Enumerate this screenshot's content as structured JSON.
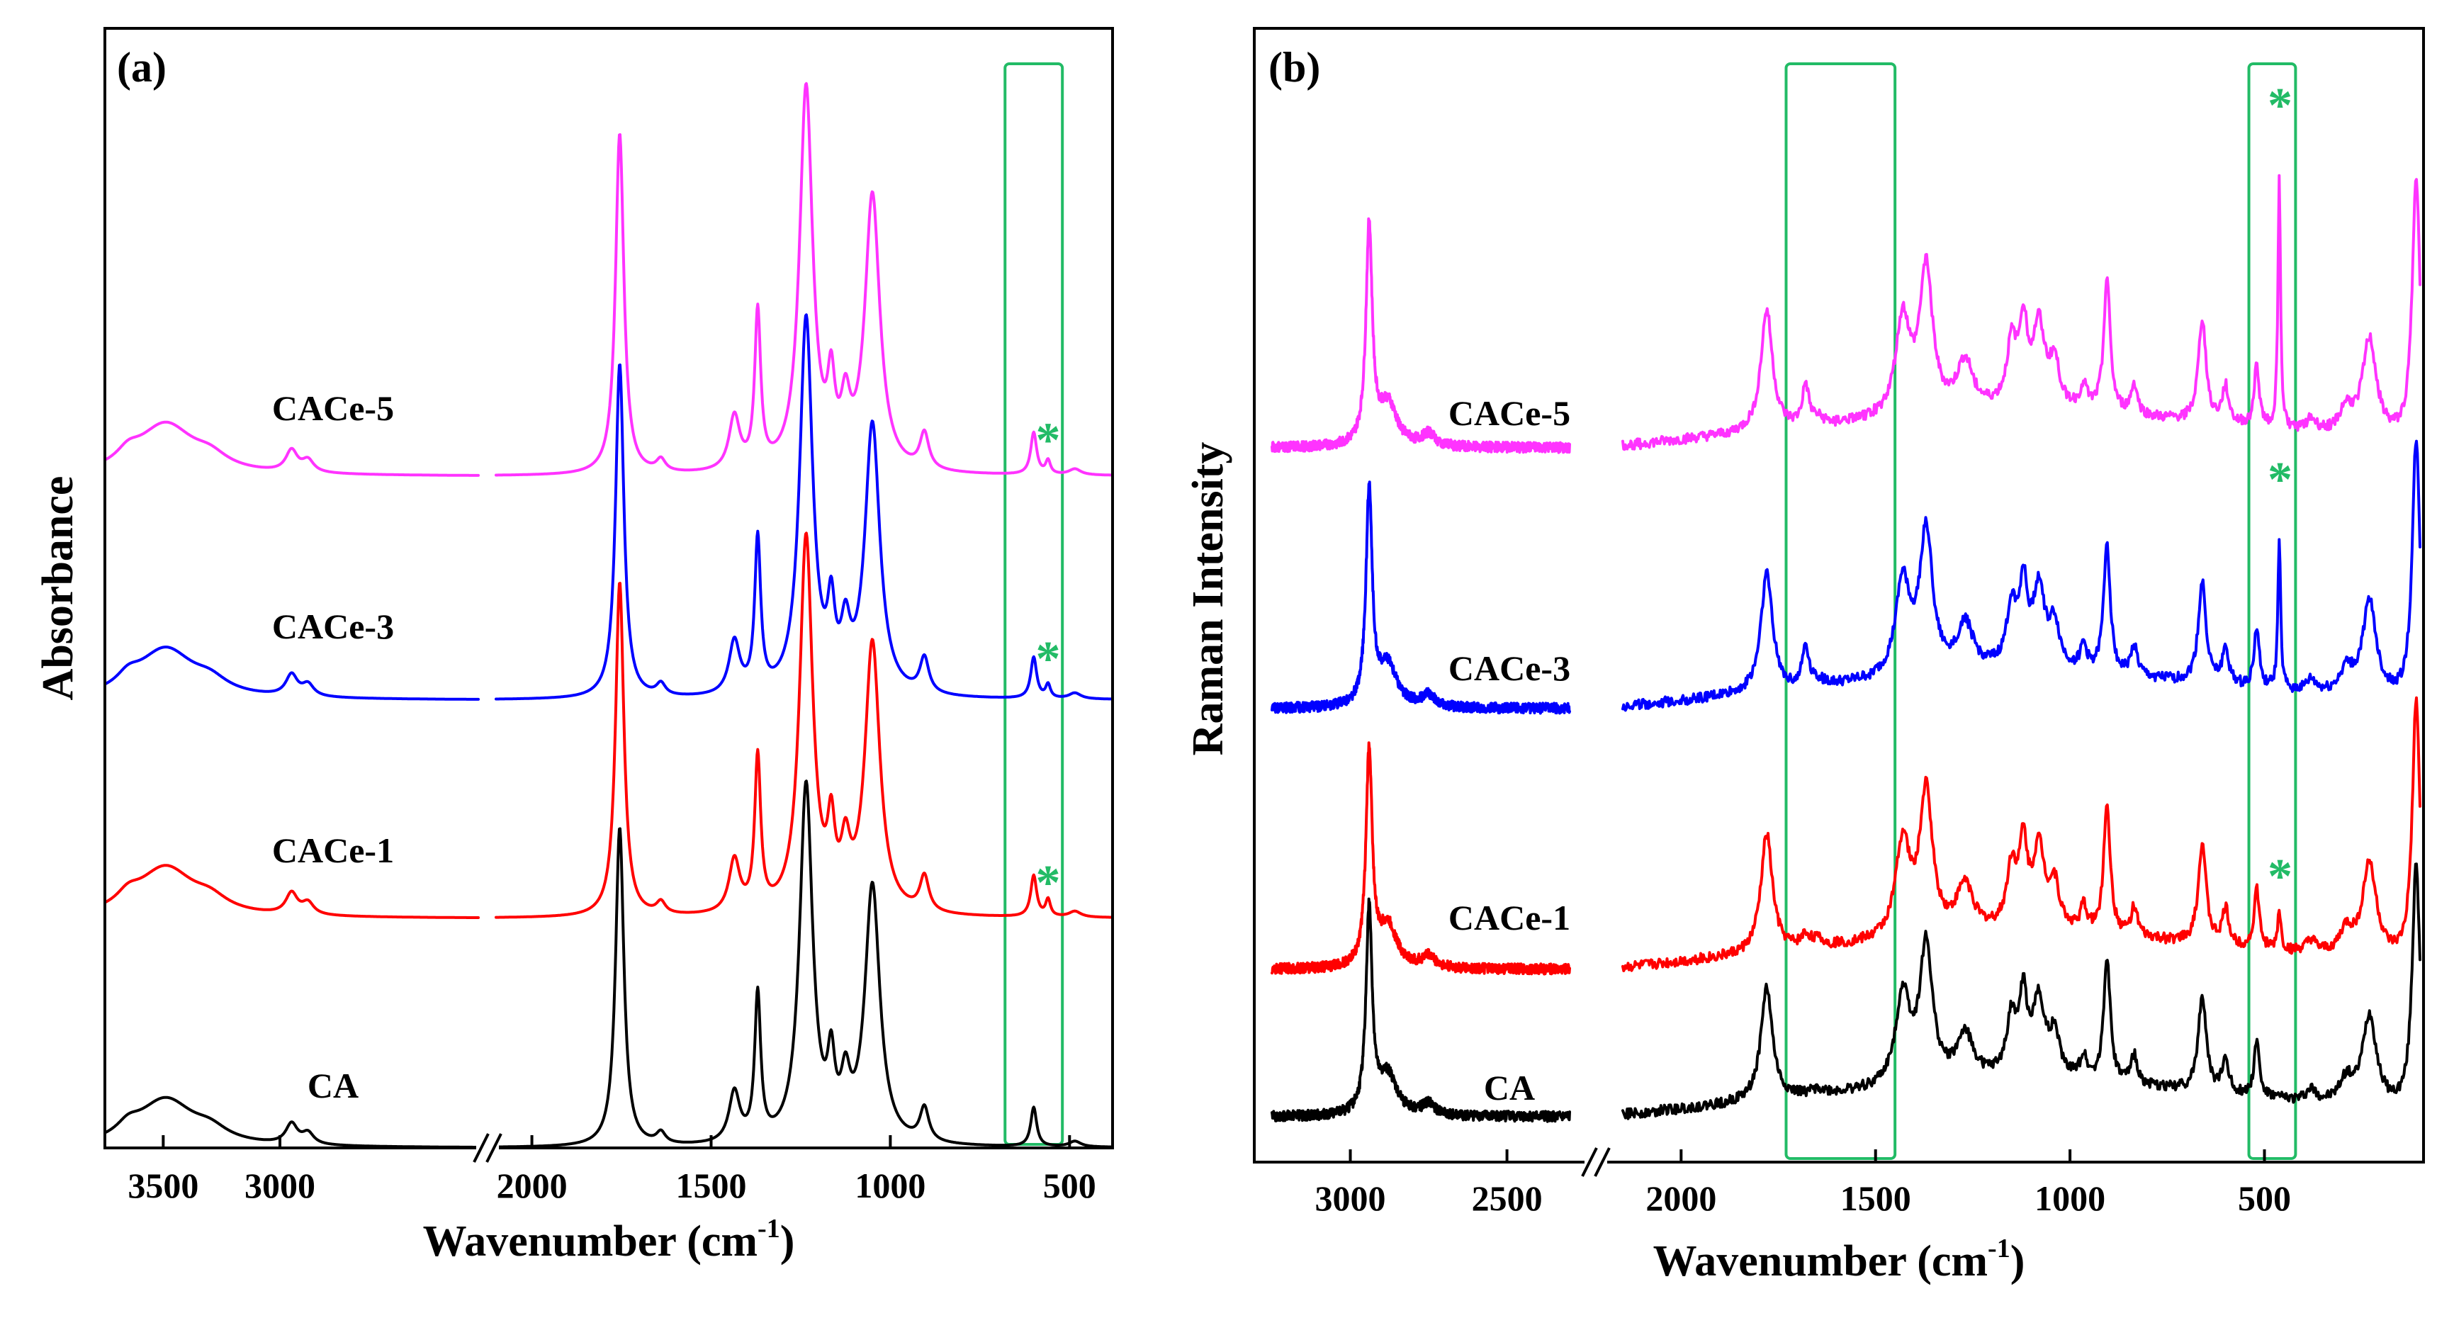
{
  "figure": {
    "colors": {
      "CA": "#000000",
      "CACe-1": "#ff0000",
      "CACe-3": "#0000ff",
      "CACe-5": "#ff33ff",
      "highlight": "#22bb66"
    },
    "star_symbol": "*"
  },
  "chart_data": [
    {
      "type": "line",
      "panel_label": "(a)",
      "xlabel": "Wavenumber (cm",
      "xlabel_sup": "-1",
      "xlabel_close": ")",
      "ylabel": "Absorbance",
      "x_reversed": true,
      "x_axis_break": true,
      "x_segments": [
        {
          "range": [
            3750,
            2150
          ],
          "ticks": [
            3500,
            3000
          ],
          "tick_labels": [
            "3500",
            "3000"
          ]
        },
        {
          "range": [
            2100,
            380
          ],
          "ticks": [
            2000,
            1500,
            1000,
            500
          ],
          "tick_labels": [
            "2000",
            "1500",
            "1000",
            "500"
          ]
        }
      ],
      "y_ticks_shown": false,
      "ylim": [
        0,
        10
      ],
      "highlight_ranges": [
        [
          680,
          520
        ]
      ],
      "star_markers": [
        {
          "x": 560,
          "y": 2.4,
          "series": "CACe-1"
        },
        {
          "x": 560,
          "y": 4.4,
          "series": "CACe-3"
        },
        {
          "x": 560,
          "y": 6.35,
          "series": "CACe-5"
        }
      ],
      "series": [
        {
          "name": "CA",
          "offset": 0.0,
          "label_y": 0.45
        },
        {
          "name": "CACe-1",
          "offset": 2.05,
          "label_y": 2.55
        },
        {
          "name": "CACe-3",
          "offset": 4.0,
          "label_y": 4.55
        },
        {
          "name": "CACe-5",
          "offset": 6.0,
          "label_y": 6.5
        }
      ],
      "peaks": {
        "high": [
          {
            "x": 3490,
            "h": 0.42,
            "w": 150
          },
          {
            "x": 3650,
            "h": 0.1,
            "w": 60
          },
          {
            "x": 3300,
            "h": 0.1,
            "w": 90
          },
          {
            "x": 2950,
            "h": 0.18,
            "w": 30
          },
          {
            "x": 2880,
            "h": 0.1,
            "w": 30
          }
        ],
        "low": [
          {
            "x": 1755,
            "h": 2.85,
            "w": 14
          },
          {
            "x": 1640,
            "h": 0.1,
            "w": 15
          },
          {
            "x": 1435,
            "h": 0.45,
            "w": 18
          },
          {
            "x": 1370,
            "h": 1.3,
            "w": 10
          },
          {
            "x": 1235,
            "h": 3.2,
            "w": 22
          },
          {
            "x": 1165,
            "h": 0.6,
            "w": 12
          },
          {
            "x": 1125,
            "h": 0.45,
            "w": 15
          },
          {
            "x": 1050,
            "h": 2.3,
            "w": 25
          },
          {
            "x": 905,
            "h": 0.3,
            "w": 15
          },
          {
            "x": 600,
            "h": 0.35,
            "w": 10
          },
          {
            "x": 485,
            "h": 0.05,
            "w": 20
          }
        ]
      },
      "series_variation": {
        "CA": {
          "scale": 1.0,
          "extra": []
        },
        "CACe-1": {
          "scale": 1.05,
          "extra": [
            {
              "x": 560,
              "h": 0.15,
              "w": 8
            }
          ]
        },
        "CACe-3": {
          "scale": 1.05,
          "extra": [
            {
              "x": 560,
              "h": 0.12,
              "w": 8
            }
          ]
        },
        "CACe-5": {
          "scale": 1.07,
          "extra": [
            {
              "x": 560,
              "h": 0.12,
              "w": 8
            }
          ]
        }
      }
    },
    {
      "type": "line",
      "panel_label": "(b)",
      "xlabel": "Wavenumber (cm",
      "xlabel_sup": "-1",
      "xlabel_close": ")",
      "ylabel": "Raman Intensity",
      "x_reversed": true,
      "x_axis_break": true,
      "x_segments": [
        {
          "range": [
            3250,
            2300
          ],
          "ticks": [
            3000,
            2500
          ],
          "tick_labels": [
            "3000",
            "2500"
          ]
        },
        {
          "range": [
            2150,
            100
          ],
          "ticks": [
            2000,
            1500,
            1000,
            500
          ],
          "tick_labels": [
            "2000",
            "1500",
            "1000",
            "500"
          ]
        }
      ],
      "y_ticks_shown": false,
      "ylim": [
        0,
        10
      ],
      "highlight_ranges": [
        [
          1730,
          1450
        ],
        [
          540,
          420
        ]
      ],
      "star_markers": [
        {
          "x": 460,
          "y": 2.55,
          "series": "CACe-1"
        },
        {
          "x": 460,
          "y": 6.05,
          "series": "CACe-3"
        },
        {
          "x": 460,
          "y": 9.35,
          "series": "CACe-5"
        }
      ],
      "series": [
        {
          "name": "CA",
          "offset": 0.4,
          "label_y": 0.55
        },
        {
          "name": "CACe-1",
          "offset": 1.7,
          "label_y": 2.05
        },
        {
          "name": "CACe-3",
          "offset": 4.0,
          "label_y": 4.25
        },
        {
          "name": "CACe-5",
          "offset": 6.3,
          "label_y": 6.5
        }
      ],
      "peaks": {
        "high": [
          {
            "x": 2940,
            "h": 1.8,
            "w": 12
          },
          {
            "x": 2880,
            "h": 0.35,
            "w": 35
          },
          {
            "x": 2750,
            "h": 0.1,
            "w": 25
          }
        ],
        "low": [
          {
            "x": 1780,
            "h": 1.0,
            "w": 18
          },
          {
            "x": 1650,
            "h": 0.05,
            "w": 20
          },
          {
            "x": 1430,
            "h": 0.8,
            "w": 22
          },
          {
            "x": 1370,
            "h": 1.2,
            "w": 20
          },
          {
            "x": 1270,
            "h": 0.4,
            "w": 25
          },
          {
            "x": 1150,
            "h": 0.5,
            "w": 15
          },
          {
            "x": 1120,
            "h": 0.65,
            "w": 12
          },
          {
            "x": 1080,
            "h": 0.65,
            "w": 18
          },
          {
            "x": 1040,
            "h": 0.35,
            "w": 15
          },
          {
            "x": 965,
            "h": 0.2,
            "w": 10
          },
          {
            "x": 905,
            "h": 1.1,
            "w": 10
          },
          {
            "x": 835,
            "h": 0.25,
            "w": 10
          },
          {
            "x": 660,
            "h": 0.85,
            "w": 12
          },
          {
            "x": 600,
            "h": 0.3,
            "w": 10
          },
          {
            "x": 520,
            "h": 0.5,
            "w": 8
          },
          {
            "x": 380,
            "h": 0.1,
            "w": 15
          },
          {
            "x": 290,
            "h": 0.2,
            "w": 20
          },
          {
            "x": 230,
            "h": 0.8,
            "w": 22
          },
          {
            "x": 110,
            "h": 2.2,
            "w": 12
          }
        ]
      },
      "series_variation": {
        "CA": {
          "scale": 1.0,
          "extra": []
        },
        "CACe-1": {
          "scale": 1.05,
          "extra": [
            {
              "x": 1680,
              "h": 0.1,
              "w": 15
            },
            {
              "x": 462,
              "h": 0.35,
              "w": 5
            }
          ]
        },
        "CACe-3": {
          "scale": 1.05,
          "extra": [
            {
              "x": 1680,
              "h": 0.35,
              "w": 10
            },
            {
              "x": 462,
              "h": 1.35,
              "w": 4
            }
          ]
        },
        "CACe-5": {
          "scale": 1.07,
          "extra": [
            {
              "x": 1680,
              "h": 0.35,
              "w": 10
            },
            {
              "x": 462,
              "h": 2.2,
              "w": 4
            }
          ]
        }
      }
    }
  ]
}
